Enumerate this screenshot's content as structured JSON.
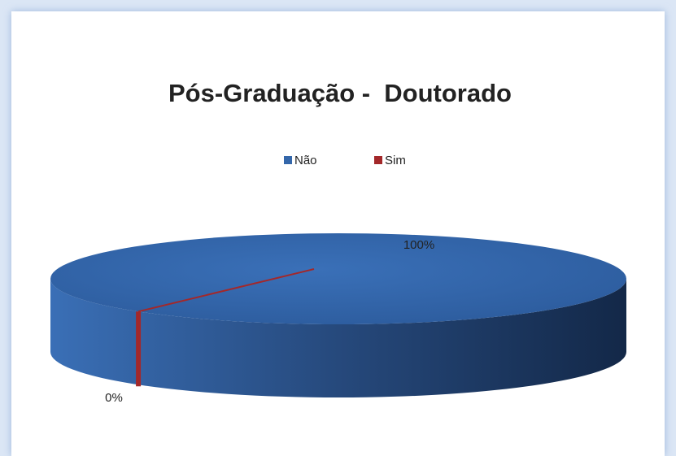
{
  "chart_data": {
    "type": "pie",
    "title": "Pós-Graduação -  Doutorado",
    "categories": [
      "Não",
      "Sim"
    ],
    "values": [
      100,
      0
    ],
    "value_labels": [
      "100%",
      "0%"
    ],
    "colors": [
      "#3467aa",
      "#a3282a"
    ],
    "legend": "top"
  }
}
